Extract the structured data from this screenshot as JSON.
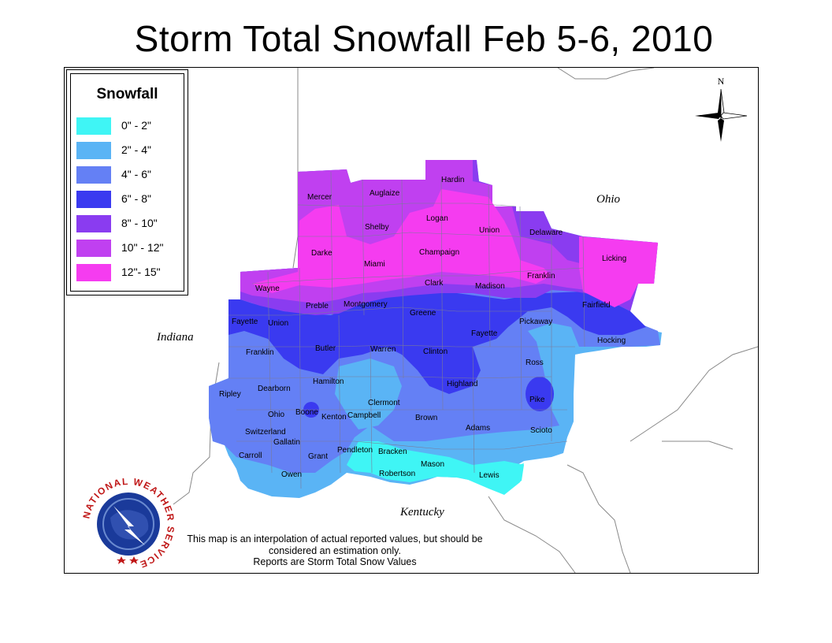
{
  "title": "Storm Total Snowfall Feb 5-6, 2010",
  "legend": {
    "title": "Snowfall",
    "items": [
      {
        "label": "0\" - 2\"",
        "color": "#3ff5f5"
      },
      {
        "label": "2\" - 4\"",
        "color": "#5ab4f5"
      },
      {
        "label": "4\" - 6\"",
        "color": "#6480f5"
      },
      {
        "label": "6\" - 8\"",
        "color": "#3a3af0"
      },
      {
        "label": "8\" - 10\"",
        "color": "#8a3cf0"
      },
      {
        "label": "10\" - 12\"",
        "color": "#c040f0"
      },
      {
        "label": "12\"- 15\"",
        "color": "#f53cf0"
      }
    ]
  },
  "states": {
    "ohio": "Ohio",
    "indiana": "Indiana",
    "kentucky": "Kentucky"
  },
  "compass": {
    "north_label": "N"
  },
  "logo": {
    "text": "NATIONAL WEATHER SERVICE"
  },
  "counties": {
    "hardin": "Hardin",
    "mercer": "Mercer",
    "auglaize": "Auglaize",
    "logan": "Logan",
    "shelby": "Shelby",
    "union_oh": "Union",
    "delaware": "Delaware",
    "champaign": "Champaign",
    "darke": "Darke",
    "miami": "Miami",
    "licking": "Licking",
    "franklin_oh": "Franklin",
    "clark": "Clark",
    "madison": "Madison",
    "wayne": "Wayne",
    "montgomery": "Montgomery",
    "preble": "Preble",
    "fairfield": "Fairfield",
    "greene": "Greene",
    "fayette_in": "Fayette",
    "union_in": "Union",
    "pickaway": "Pickaway",
    "fayette_oh": "Fayette",
    "hocking": "Hocking",
    "butler": "Butler",
    "warren": "Warren",
    "clinton": "Clinton",
    "franklin_in": "Franklin",
    "ross": "Ross",
    "hamilton": "Hamilton",
    "highland": "Highland",
    "dearborn": "Dearborn",
    "ripley": "Ripley",
    "clermont": "Clermont",
    "pike": "Pike",
    "ohio_in": "Ohio",
    "boone": "Boone",
    "kenton": "Kenton",
    "campbell": "Campbell",
    "brown": "Brown",
    "adams": "Adams",
    "scioto": "Scioto",
    "switzerland": "Switzerland",
    "gallatin": "Gallatin",
    "carroll": "Carroll",
    "grant": "Grant",
    "pendleton": "Pendleton",
    "bracken": "Bracken",
    "mason": "Mason",
    "owen": "Owen",
    "robertson": "Robertson",
    "lewis": "Lewis"
  },
  "note": {
    "line1": "This map is an interpolation of actual reported values, but should be",
    "line2": "considered an estimation only.",
    "line3": "Reports are Storm Total Snow Values"
  }
}
